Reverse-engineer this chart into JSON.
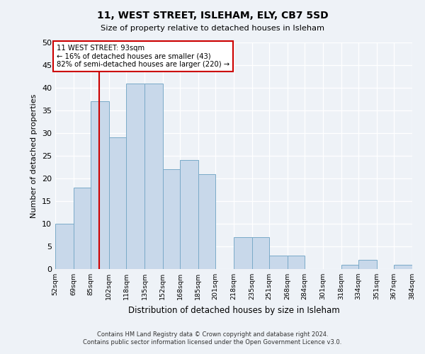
{
  "title": "11, WEST STREET, ISLEHAM, ELY, CB7 5SD",
  "subtitle": "Size of property relative to detached houses in Isleham",
  "xlabel": "Distribution of detached houses by size in Isleham",
  "ylabel": "Number of detached properties",
  "bar_color": "#c8d8ea",
  "bar_edgecolor": "#7aaac8",
  "bins": [
    52,
    69,
    85,
    102,
    118,
    135,
    152,
    168,
    185,
    201,
    218,
    235,
    251,
    268,
    284,
    301,
    318,
    334,
    351,
    367,
    384
  ],
  "counts": [
    10,
    18,
    37,
    29,
    41,
    41,
    22,
    24,
    21,
    0,
    7,
    7,
    3,
    3,
    0,
    0,
    1,
    2,
    0,
    1
  ],
  "tick_labels": [
    "52sqm",
    "69sqm",
    "85sqm",
    "102sqm",
    "118sqm",
    "135sqm",
    "152sqm",
    "168sqm",
    "185sqm",
    "201sqm",
    "218sqm",
    "235sqm",
    "251sqm",
    "268sqm",
    "284sqm",
    "301sqm",
    "318sqm",
    "334sqm",
    "351sqm",
    "367sqm",
    "384sqm"
  ],
  "ylim": [
    0,
    50
  ],
  "yticks": [
    0,
    5,
    10,
    15,
    20,
    25,
    30,
    35,
    40,
    45,
    50
  ],
  "property_line_x": 93,
  "property_line_color": "#cc0000",
  "annotation_text": "11 WEST STREET: 93sqm\n← 16% of detached houses are smaller (43)\n82% of semi-detached houses are larger (220) →",
  "annotation_box_edgecolor": "#cc0000",
  "annotation_box_facecolor": "#ffffff",
  "footer_line1": "Contains HM Land Registry data © Crown copyright and database right 2024.",
  "footer_line2": "Contains public sector information licensed under the Open Government Licence v3.0.",
  "background_color": "#eef2f7"
}
